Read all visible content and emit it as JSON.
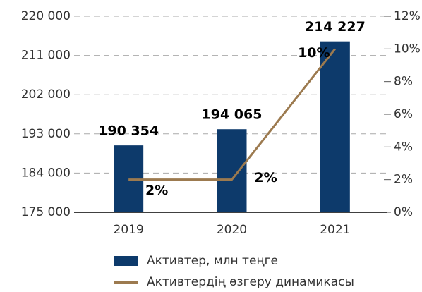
{
  "chart_data": {
    "type": "bar",
    "categories": [
      "2019",
      "2020",
      "2021"
    ],
    "series": [
      {
        "name": "Активтер, млн теңге",
        "type": "bar",
        "color": "#0d3a6b",
        "values": [
          190354,
          194065,
          214227
        ],
        "value_labels": [
          "190 354",
          "194 065",
          "214 227"
        ]
      },
      {
        "name": "Активтердің өзгеру динамикасы",
        "type": "line",
        "axis": "y2",
        "color": "#9c7a4f",
        "values": [
          2,
          2,
          10
        ],
        "value_labels": [
          "2%",
          "2%",
          "10%"
        ]
      }
    ],
    "ylim": [
      175000,
      220000
    ],
    "yticks": [
      {
        "value": 175000,
        "label": "175 000"
      },
      {
        "value": 184000,
        "label": "184 000"
      },
      {
        "value": 193000,
        "label": "193 000"
      },
      {
        "value": 202000,
        "label": "202 000"
      },
      {
        "value": 211000,
        "label": "211 000"
      },
      {
        "value": 220000,
        "label": "220 000"
      }
    ],
    "y2lim": [
      0,
      12
    ],
    "y2ticks": [
      {
        "value": 0,
        "label": "0%"
      },
      {
        "value": 2,
        "label": "2%"
      },
      {
        "value": 4,
        "label": "4%"
      },
      {
        "value": 6,
        "label": "6%"
      },
      {
        "value": 8,
        "label": "8%"
      },
      {
        "value": 10,
        "label": "10%"
      },
      {
        "value": 12,
        "label": "12%"
      }
    ],
    "grid": true
  }
}
